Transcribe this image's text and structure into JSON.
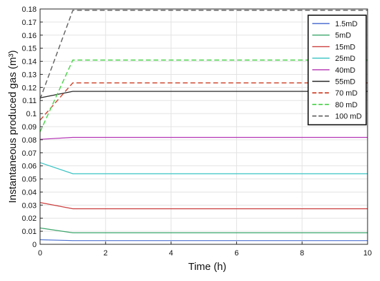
{
  "chart_data": {
    "type": "line",
    "xlabel": "Time (h)",
    "ylabel": "Instantaneous produced gas (m³)",
    "xlim": [
      0,
      10
    ],
    "ylim": [
      0,
      0.18
    ],
    "xticks": [
      0,
      2,
      4,
      6,
      8,
      10
    ],
    "yticks": [
      0,
      0.01,
      0.02,
      0.03,
      0.04,
      0.05,
      0.06,
      0.07,
      0.08,
      0.09,
      0.1,
      0.11,
      0.12,
      0.13,
      0.14,
      0.15,
      0.16,
      0.17,
      0.18
    ],
    "ytick_labels": [
      "0",
      "0.01",
      "0.02",
      "0.03",
      "0.04",
      "0.05",
      "0.06",
      "0.07",
      "0.08",
      "0.09",
      "0.1",
      "0.11",
      "0.12",
      "0.13",
      "0.14",
      "0.15",
      "0.16",
      "0.17",
      "0.18"
    ],
    "grid": true,
    "legend_position": "top-right",
    "series": [
      {
        "name": "1.5mD",
        "color": "#4a6fd0",
        "dash": "solid",
        "x": [
          0,
          1,
          10
        ],
        "y": [
          0.0035,
          0.0028,
          0.0028
        ]
      },
      {
        "name": "5mD",
        "color": "#3aa56a",
        "dash": "solid",
        "x": [
          0,
          1,
          10
        ],
        "y": [
          0.0125,
          0.0088,
          0.0088
        ]
      },
      {
        "name": "15mD",
        "color": "#cc3c3c",
        "dash": "solid",
        "x": [
          0,
          1,
          10
        ],
        "y": [
          0.032,
          0.0272,
          0.0272
        ]
      },
      {
        "name": "25mD",
        "color": "#35c2c2",
        "dash": "solid",
        "x": [
          0,
          1,
          10
        ],
        "y": [
          0.0625,
          0.054,
          0.054
        ]
      },
      {
        "name": "40mD",
        "color": "#b331b3",
        "dash": "solid",
        "x": [
          0,
          1,
          10
        ],
        "y": [
          0.0803,
          0.0818,
          0.0818
        ]
      },
      {
        "name": "55mD",
        "color": "#222222",
        "dash": "solid",
        "x": [
          0,
          1,
          10
        ],
        "y": [
          0.112,
          0.117,
          0.117
        ]
      },
      {
        "name": "70 mD",
        "color": "#d04a32",
        "dash": "dashed",
        "x": [
          0,
          1,
          10
        ],
        "y": [
          0.095,
          0.1235,
          0.1235
        ]
      },
      {
        "name": "80 mD",
        "color": "#4fd44f",
        "dash": "dashed",
        "x": [
          0,
          1,
          10
        ],
        "y": [
          0.086,
          0.141,
          0.141
        ]
      },
      {
        "name": "100 mD",
        "color": "#666666",
        "dash": "dashed",
        "x": [
          0,
          1,
          10
        ],
        "y": [
          0.111,
          0.179,
          0.179
        ]
      }
    ]
  }
}
